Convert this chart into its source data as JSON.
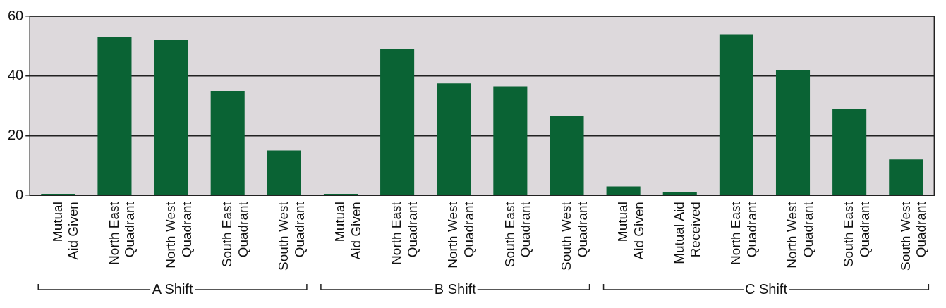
{
  "chart_data": {
    "type": "bar",
    "categories": [
      "Mutual Aid Given",
      "North East Quadrant",
      "North West Quadrant",
      "South East Quadrant",
      "South West Quadrant",
      "Mutual Aid Given",
      "North East Quadrant",
      "North West Quadrant",
      "South East Quadrant",
      "South West Quadrant",
      "Mutual Aid Given",
      "Mutual Aid Received",
      "North East Quadrant",
      "North West Quadrant",
      "South East Quadrant",
      "South West Quadrant"
    ],
    "values": [
      0.5,
      53,
      52,
      35,
      15,
      0.5,
      49,
      37.5,
      36.5,
      26.5,
      3,
      1,
      54,
      42,
      29,
      12
    ],
    "color": "#0a6334",
    "ylim": [
      0,
      60
    ],
    "yticks": [
      0,
      20,
      40,
      60
    ],
    "grid": "y",
    "annotations": [
      "A Shift",
      "B Shift",
      "C Shift"
    ]
  }
}
